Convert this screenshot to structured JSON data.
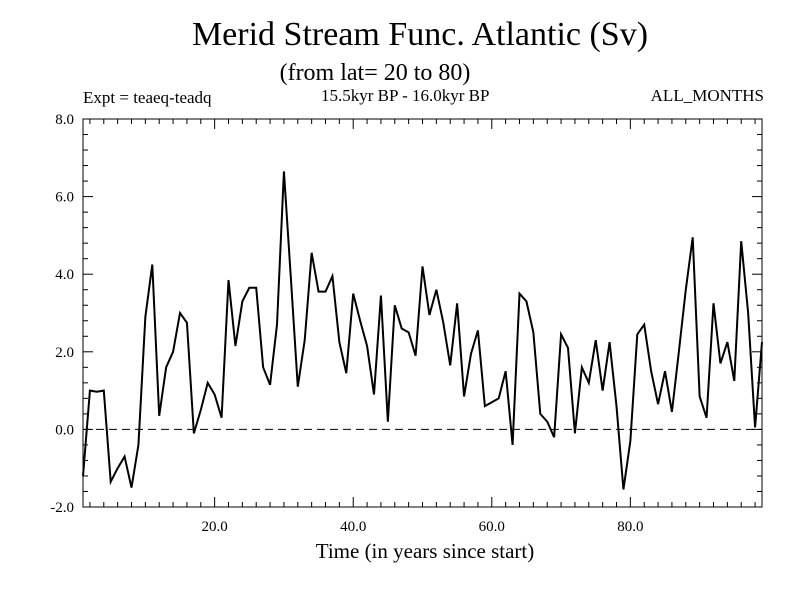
{
  "chart_data": {
    "type": "line",
    "title": "Merid Stream Func. Atlantic (Sv)",
    "subtitle": "(from lat= 20 to 80)",
    "experiment": "Expt = teaeq-teadq",
    "period": "15.5kyr BP - 16.0kyr BP",
    "months": "ALL_MONTHS",
    "xlabel": "Time (in years since start)",
    "ylabel": "",
    "xlim": [
      1,
      99
    ],
    "ylim": [
      -2.0,
      8.0
    ],
    "x_ticks": [
      20,
      40,
      60,
      80
    ],
    "x_tick_labels": [
      "20.0",
      "40.0",
      "60.0",
      "80.0"
    ],
    "y_ticks": [
      -2,
      0,
      2,
      4,
      6,
      8
    ],
    "y_tick_labels": [
      "-2.0",
      "0.0",
      "2.0",
      "4.0",
      "6.0",
      "8.0"
    ],
    "reference_line": 0.0,
    "series": [
      {
        "name": "teaeq-teadq",
        "x": [
          1,
          2,
          3,
          4,
          5,
          6,
          7,
          8,
          9,
          10,
          11,
          12,
          13,
          14,
          15,
          16,
          17,
          18,
          19,
          20,
          21,
          22,
          23,
          24,
          25,
          26,
          27,
          28,
          29,
          30,
          31,
          32,
          33,
          34,
          35,
          36,
          37,
          38,
          39,
          40,
          41,
          42,
          43,
          44,
          45,
          46,
          47,
          48,
          49,
          50,
          51,
          52,
          53,
          54,
          55,
          56,
          57,
          58,
          59,
          60,
          61,
          62,
          63,
          64,
          65,
          66,
          67,
          68,
          69,
          70,
          71,
          72,
          73,
          74,
          75,
          76,
          77,
          78,
          79,
          80,
          81,
          82,
          83,
          84,
          85,
          86,
          87,
          88,
          89,
          90,
          91,
          92,
          93,
          94,
          95,
          96,
          97,
          98,
          99
        ],
        "values": [
          -1.2,
          1.0,
          0.97,
          1.0,
          -1.35,
          -1.0,
          -0.7,
          -1.5,
          -0.4,
          2.9,
          4.25,
          0.35,
          1.6,
          2.0,
          3.0,
          2.75,
          -0.1,
          0.5,
          1.2,
          0.9,
          0.3,
          3.85,
          2.15,
          3.3,
          3.65,
          3.65,
          1.6,
          1.15,
          2.7,
          6.65,
          3.9,
          1.1,
          2.3,
          4.55,
          3.55,
          3.55,
          3.95,
          2.25,
          1.45,
          3.5,
          2.8,
          2.15,
          0.9,
          3.45,
          0.2,
          3.2,
          2.6,
          2.5,
          1.9,
          4.2,
          2.95,
          3.6,
          2.75,
          1.65,
          3.25,
          0.85,
          1.95,
          2.55,
          0.6,
          0.7,
          0.8,
          1.5,
          -0.4,
          3.5,
          3.3,
          2.5,
          0.4,
          0.2,
          -0.2,
          2.45,
          2.1,
          -0.1,
          1.6,
          1.2,
          2.3,
          1.0,
          2.25,
          0.6,
          -1.55,
          -0.3,
          2.45,
          2.7,
          1.5,
          0.65,
          1.5,
          0.45,
          2.0,
          3.6,
          4.95,
          0.85,
          0.3,
          3.25,
          1.7,
          2.25,
          1.25,
          4.85,
          3.0,
          0.05,
          2.25
        ]
      }
    ]
  }
}
